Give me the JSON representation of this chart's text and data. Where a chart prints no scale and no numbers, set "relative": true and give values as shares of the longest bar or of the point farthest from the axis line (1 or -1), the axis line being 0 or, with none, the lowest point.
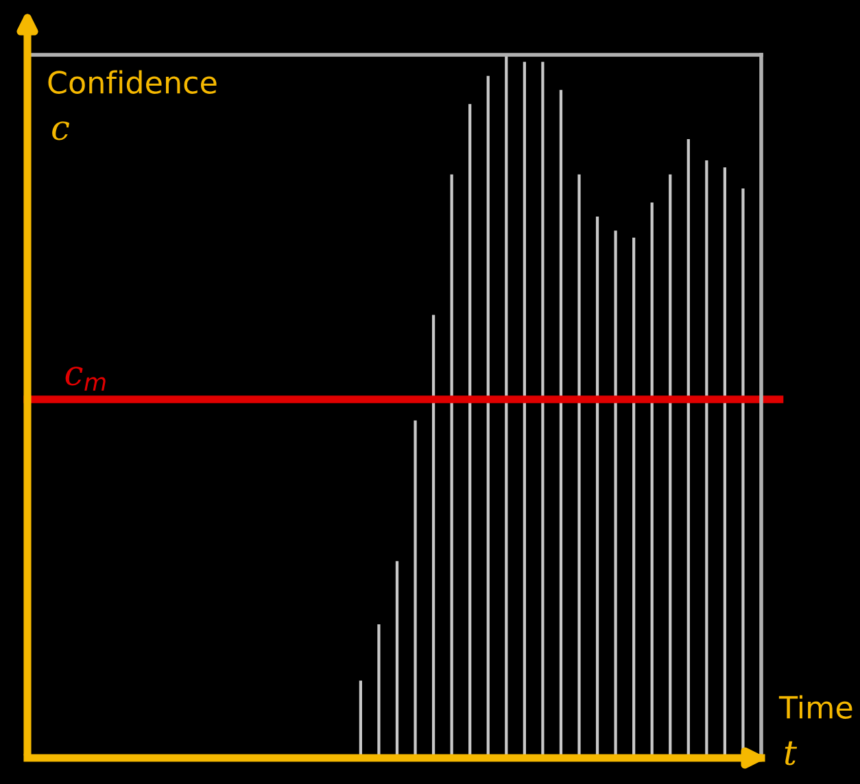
{
  "chart_data": {
    "type": "bar",
    "relative": true,
    "ylabel": "Confidence\nc",
    "xlabel": "Time\nt",
    "categories": [
      null,
      null,
      null,
      null,
      null,
      null,
      null,
      null,
      null,
      null,
      null,
      null,
      null,
      null,
      null,
      null,
      null,
      null,
      null,
      null,
      null,
      null
    ],
    "series": [
      {
        "color": "#c8c8c8",
        "values": [
          0.11,
          0.19,
          0.28,
          0.48,
          0.63,
          0.83,
          0.93,
          0.97,
          1,
          0.99,
          0.99,
          0.95,
          0.83,
          0.77,
          0.75,
          0.74,
          0.79,
          0.83,
          0.88,
          0.85,
          0.84,
          0.81
        ]
      }
    ],
    "ref_lines": [
      {
        "axis": "y",
        "value": 0.51,
        "label": "c$_{m}$",
        "color": "#e00000"
      }
    ],
    "grid": false,
    "legend": false
  }
}
